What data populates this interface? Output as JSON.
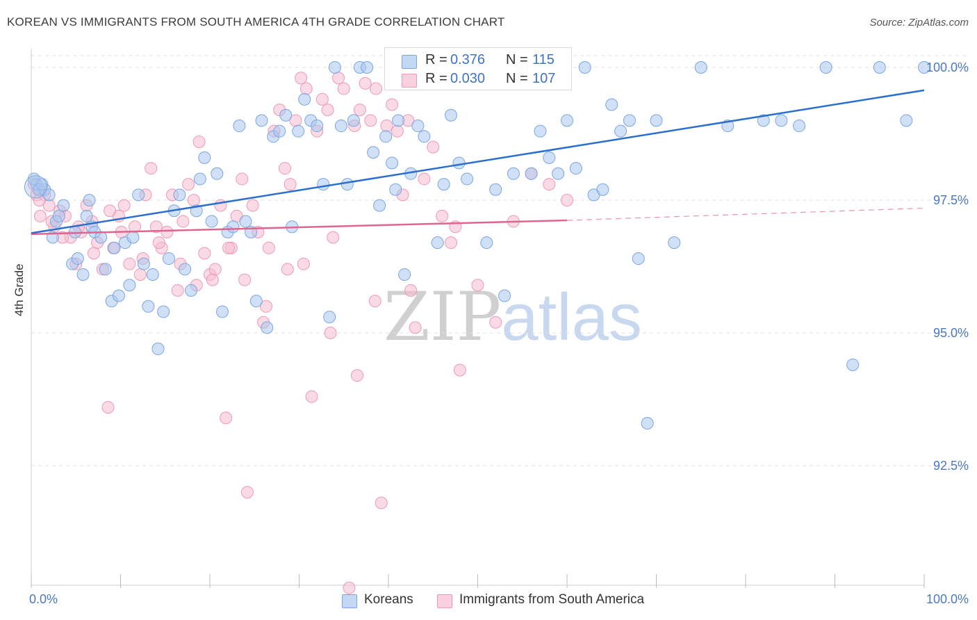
{
  "header": {
    "title": "KOREAN VS IMMIGRANTS FROM SOUTH AMERICA 4TH GRADE CORRELATION CHART",
    "source": "Source: ZipAtlas.com"
  },
  "watermark": {
    "zip": "ZIP",
    "atlas": "atlas"
  },
  "legend_top": {
    "rows": [
      {
        "r_label": "R =",
        "r_value": "0.376",
        "n_label": "N =",
        "n_value": "115"
      },
      {
        "r_label": "R =",
        "r_value": "0.030",
        "n_label": "N =",
        "n_value": "107"
      }
    ]
  },
  "legend_bottom": {
    "items": [
      {
        "label": "Koreans"
      },
      {
        "label": "Immigrants from South America"
      }
    ]
  },
  "colors": {
    "korean_fill": "#aac6ee",
    "korean_stroke": "#7aa6e0",
    "korean_line": "#2a6fce",
    "sa_fill": "#f6bdd0",
    "sa_stroke": "#ee98b7",
    "sa_line": "#e0648f",
    "grid": "#e0e0e0",
    "tick_text": "#4a78c2"
  },
  "chart_data": {
    "type": "scatter",
    "title": "KOREAN VS IMMIGRANTS FROM SOUTH AMERICA 4TH GRADE CORRELATION CHART",
    "xlabel": "",
    "ylabel": "4th Grade",
    "xlim": [
      0,
      100
    ],
    "ylim": [
      90.0,
      100.6
    ],
    "x_tick_labels": {
      "min": "0.0%",
      "max": "100.0%"
    },
    "y_ticks": [
      {
        "value": 100.0,
        "label": "100.0%"
      },
      {
        "value": 97.5,
        "label": "97.5%"
      },
      {
        "value": 95.0,
        "label": "95.0%"
      },
      {
        "value": 92.5,
        "label": "92.5%"
      }
    ],
    "grid": true,
    "legend_placement": "top-center",
    "series": [
      {
        "name": "Koreans",
        "r": 0.376,
        "n": 115,
        "trend": {
          "x": [
            0,
            100
          ],
          "y": [
            96.88,
            99.57
          ]
        },
        "points": [
          [
            0.6,
            97.8
          ],
          [
            0.9,
            97.7
          ],
          [
            1.5,
            97.7
          ],
          [
            2.4,
            96.8
          ],
          [
            2.8,
            97.1
          ],
          [
            3.6,
            97.4
          ],
          [
            4.9,
            96.9
          ],
          [
            4.6,
            96.3
          ],
          [
            5.2,
            96.4
          ],
          [
            5.8,
            96.1
          ],
          [
            6.2,
            97.2
          ],
          [
            6.8,
            97.0
          ],
          [
            7.1,
            96.9
          ],
          [
            7.8,
            96.8
          ],
          [
            8.3,
            96.2
          ],
          [
            9.0,
            95.6
          ],
          [
            9.8,
            95.7
          ],
          [
            10.5,
            96.7
          ],
          [
            11.0,
            95.9
          ],
          [
            11.4,
            96.8
          ],
          [
            12.0,
            97.6
          ],
          [
            12.6,
            96.3
          ],
          [
            13.1,
            95.5
          ],
          [
            13.6,
            96.1
          ],
          [
            14.2,
            94.7
          ],
          [
            14.8,
            95.4
          ],
          [
            15.4,
            96.4
          ],
          [
            16.0,
            97.3
          ],
          [
            16.6,
            97.6
          ],
          [
            17.2,
            96.2
          ],
          [
            17.9,
            95.8
          ],
          [
            18.5,
            97.3
          ],
          [
            18.9,
            97.9
          ],
          [
            19.4,
            98.3
          ],
          [
            20.2,
            97.1
          ],
          [
            20.8,
            98.0
          ],
          [
            21.4,
            95.4
          ],
          [
            22.0,
            96.9
          ],
          [
            22.6,
            97.0
          ],
          [
            23.3,
            98.9
          ],
          [
            24.0,
            97.1
          ],
          [
            24.6,
            96.9
          ],
          [
            25.2,
            95.6
          ],
          [
            25.8,
            99.0
          ],
          [
            26.4,
            95.1
          ],
          [
            27.1,
            98.7
          ],
          [
            27.8,
            98.8
          ],
          [
            28.5,
            99.1
          ],
          [
            29.2,
            97.0
          ],
          [
            29.9,
            98.8
          ],
          [
            30.6,
            99.4
          ],
          [
            31.3,
            99.0
          ],
          [
            32.0,
            98.9
          ],
          [
            32.7,
            97.8
          ],
          [
            33.4,
            95.3
          ],
          [
            34.0,
            100.0
          ],
          [
            34.7,
            98.9
          ],
          [
            35.4,
            97.8
          ],
          [
            36.1,
            99.0
          ],
          [
            36.8,
            100.0
          ],
          [
            37.6,
            100.0
          ],
          [
            38.3,
            98.4
          ],
          [
            39.0,
            97.4
          ],
          [
            39.7,
            98.7
          ],
          [
            40.4,
            98.2
          ],
          [
            41.1,
            99.0
          ],
          [
            41.8,
            96.1
          ],
          [
            42.5,
            98.0
          ],
          [
            43.3,
            98.9
          ],
          [
            44.0,
            98.7
          ],
          [
            44.8,
            100.0
          ],
          [
            45.5,
            96.7
          ],
          [
            46.2,
            97.8
          ],
          [
            47.0,
            99.1
          ],
          [
            47.9,
            98.2
          ],
          [
            48.8,
            97.9
          ],
          [
            49.6,
            100.0
          ],
          [
            51.0,
            96.7
          ],
          [
            52.0,
            97.7
          ],
          [
            53.0,
            95.7
          ],
          [
            54.0,
            98.0
          ],
          [
            55.0,
            100.0
          ],
          [
            56.0,
            98.0
          ],
          [
            57.0,
            98.8
          ],
          [
            58.0,
            98.3
          ],
          [
            59.0,
            98.0
          ],
          [
            60.0,
            99.0
          ],
          [
            61.0,
            98.1
          ],
          [
            62.0,
            100.0
          ],
          [
            63.0,
            97.6
          ],
          [
            64.0,
            97.7
          ],
          [
            65.0,
            99.3
          ],
          [
            66.0,
            98.8
          ],
          [
            67.0,
            99.0
          ],
          [
            68.0,
            96.4
          ],
          [
            69.0,
            93.3
          ],
          [
            70.0,
            99.0
          ],
          [
            72.0,
            96.7
          ],
          [
            75.0,
            100.0
          ],
          [
            78.0,
            98.9
          ],
          [
            82.0,
            99.0
          ],
          [
            84.0,
            99.0
          ],
          [
            86.0,
            98.9
          ],
          [
            89.0,
            100.0
          ],
          [
            92.0,
            94.4
          ],
          [
            95.0,
            100.0
          ],
          [
            98.0,
            99.0
          ],
          [
            100.0,
            100.0
          ],
          [
            0.3,
            97.9
          ],
          [
            1.2,
            97.8
          ],
          [
            2.0,
            97.6
          ],
          [
            3.1,
            97.2
          ],
          [
            6.5,
            97.5
          ],
          [
            9.3,
            96.6
          ],
          [
            40.8,
            97.7
          ]
        ]
      },
      {
        "name": "Immigrants from South America",
        "r": 0.03,
        "n": 107,
        "trend_solid": {
          "x": [
            0,
            60
          ],
          "y": [
            96.86,
            97.12
          ]
        },
        "trend_dashed": {
          "x": [
            60,
            100
          ],
          "y": [
            97.12,
            97.35
          ]
        },
        "points": [
          [
            0.6,
            97.6
          ],
          [
            1.0,
            97.2
          ],
          [
            1.5,
            97.6
          ],
          [
            2.0,
            97.4
          ],
          [
            2.6,
            97.0
          ],
          [
            3.2,
            97.3
          ],
          [
            3.8,
            97.2
          ],
          [
            4.4,
            96.8
          ],
          [
            5.0,
            96.3
          ],
          [
            5.6,
            96.9
          ],
          [
            6.2,
            97.4
          ],
          [
            6.8,
            97.1
          ],
          [
            7.4,
            96.7
          ],
          [
            8.0,
            96.2
          ],
          [
            8.6,
            93.6
          ],
          [
            9.2,
            96.6
          ],
          [
            9.8,
            97.2
          ],
          [
            10.4,
            97.4
          ],
          [
            11.0,
            96.3
          ],
          [
            11.6,
            97.0
          ],
          [
            12.2,
            96.1
          ],
          [
            12.8,
            97.6
          ],
          [
            13.4,
            98.1
          ],
          [
            14.0,
            97.0
          ],
          [
            14.6,
            96.6
          ],
          [
            15.2,
            96.9
          ],
          [
            15.8,
            97.6
          ],
          [
            16.4,
            95.8
          ],
          [
            17.0,
            97.1
          ],
          [
            17.6,
            97.8
          ],
          [
            18.2,
            97.5
          ],
          [
            18.8,
            98.6
          ],
          [
            19.4,
            96.5
          ],
          [
            20.0,
            96.1
          ],
          [
            20.6,
            96.2
          ],
          [
            21.2,
            97.4
          ],
          [
            21.8,
            93.4
          ],
          [
            22.4,
            96.6
          ],
          [
            23.0,
            97.2
          ],
          [
            23.6,
            97.9
          ],
          [
            24.2,
            92.0
          ],
          [
            24.8,
            97.4
          ],
          [
            25.4,
            96.9
          ],
          [
            26.0,
            95.2
          ],
          [
            26.6,
            96.6
          ],
          [
            27.2,
            98.8
          ],
          [
            27.8,
            99.2
          ],
          [
            28.4,
            98.1
          ],
          [
            29.0,
            97.8
          ],
          [
            29.6,
            99.0
          ],
          [
            30.2,
            99.8
          ],
          [
            30.8,
            99.6
          ],
          [
            31.4,
            93.8
          ],
          [
            32.0,
            98.8
          ],
          [
            32.6,
            99.4
          ],
          [
            33.2,
            99.2
          ],
          [
            33.8,
            96.8
          ],
          [
            34.4,
            99.8
          ],
          [
            35.0,
            99.6
          ],
          [
            35.6,
            90.2
          ],
          [
            36.2,
            98.9
          ],
          [
            36.8,
            99.2
          ],
          [
            37.4,
            99.7
          ],
          [
            38.0,
            99.0
          ],
          [
            38.6,
            99.6
          ],
          [
            39.2,
            91.8
          ],
          [
            39.8,
            98.9
          ],
          [
            40.4,
            99.3
          ],
          [
            41.0,
            98.8
          ],
          [
            41.6,
            97.6
          ],
          [
            42.2,
            99.0
          ],
          [
            43.0,
            95.1
          ],
          [
            44.0,
            97.9
          ],
          [
            45.0,
            98.5
          ],
          [
            46.0,
            97.2
          ],
          [
            47.0,
            96.7
          ],
          [
            48.0,
            94.3
          ],
          [
            50.0,
            95.9
          ],
          [
            52.0,
            95.2
          ],
          [
            54.0,
            97.1
          ],
          [
            56.0,
            98.0
          ],
          [
            58.0,
            97.8
          ],
          [
            60.0,
            97.5
          ],
          [
            0.3,
            97.8
          ],
          [
            0.9,
            97.5
          ],
          [
            2.3,
            97.1
          ],
          [
            3.5,
            96.8
          ],
          [
            5.3,
            97.0
          ],
          [
            7.0,
            96.5
          ],
          [
            8.8,
            97.3
          ],
          [
            10.1,
            96.9
          ],
          [
            12.5,
            96.4
          ],
          [
            14.3,
            96.7
          ],
          [
            16.7,
            96.3
          ],
          [
            18.5,
            95.9
          ],
          [
            20.3,
            96.0
          ],
          [
            22.1,
            96.6
          ],
          [
            23.9,
            96.0
          ],
          [
            26.3,
            95.5
          ],
          [
            28.7,
            96.2
          ],
          [
            30.5,
            96.3
          ],
          [
            33.5,
            95.0
          ],
          [
            36.5,
            94.2
          ],
          [
            38.5,
            95.6
          ],
          [
            42.5,
            95.8
          ],
          [
            47.5,
            97.0
          ],
          [
            0.8,
            97.7
          ]
        ]
      }
    ]
  }
}
